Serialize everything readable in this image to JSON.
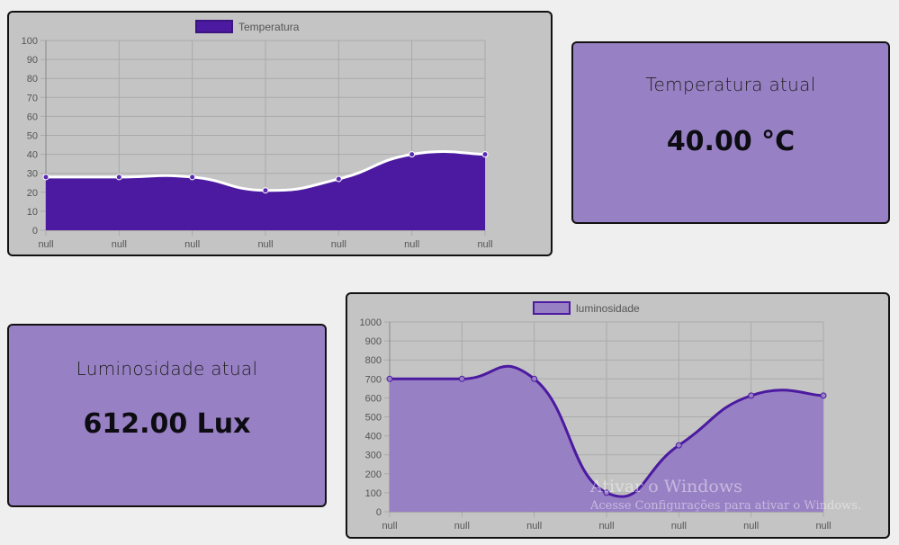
{
  "temp_card": {
    "title": "Temperatura atual",
    "value": "40.00 °C"
  },
  "lux_card": {
    "title": "Luminosidade atual",
    "value": "612.00 Lux"
  },
  "watermark": {
    "line1": "Ativar o Windows",
    "line2": "Acesse Configurações para ativar o Windows."
  },
  "chart_data": [
    {
      "type": "area",
      "legend": "Temperatura",
      "categories": [
        "null",
        "null",
        "null",
        "null",
        "null",
        "null",
        "null"
      ],
      "values": [
        28,
        28,
        28,
        21,
        27,
        40,
        40
      ],
      "ylim": [
        0,
        100
      ],
      "yticks": [
        0,
        10,
        20,
        30,
        40,
        50,
        60,
        70,
        80,
        90,
        100
      ],
      "fill": "#4b1aa0",
      "line": "#ffffff",
      "point": "#5a2bb0",
      "grid": true,
      "legend_position": "top"
    },
    {
      "type": "area",
      "legend": "luminosidade",
      "categories": [
        "null",
        "null",
        "null",
        "null",
        "null",
        "null",
        "null"
      ],
      "values": [
        700,
        700,
        700,
        100,
        350,
        612,
        612
      ],
      "ylim": [
        0,
        1000
      ],
      "yticks": [
        0,
        100,
        200,
        300,
        400,
        500,
        600,
        700,
        800,
        900,
        1000
      ],
      "fill": "#9880c4",
      "line": "#4b1aa0",
      "point": "#9880c4",
      "grid": true,
      "legend_position": "top"
    }
  ]
}
